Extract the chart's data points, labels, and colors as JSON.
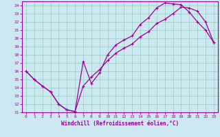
{
  "xlabel": "Windchill (Refroidissement éolien,°C)",
  "bg_color": "#cce8f0",
  "line_color": "#990099",
  "grid_color": "#99ccbb",
  "xlim": [
    -0.5,
    23.5
  ],
  "ylim": [
    11,
    24.5
  ],
  "xticks": [
    0,
    1,
    2,
    3,
    4,
    5,
    6,
    7,
    8,
    9,
    10,
    11,
    12,
    13,
    14,
    15,
    16,
    17,
    18,
    19,
    20,
    21,
    22,
    23
  ],
  "yticks": [
    11,
    12,
    13,
    14,
    15,
    16,
    17,
    18,
    19,
    20,
    21,
    22,
    23,
    24
  ],
  "line1_x": [
    0,
    1,
    2,
    3,
    4,
    5,
    6,
    7,
    8,
    9,
    10,
    11,
    12,
    13,
    14,
    15,
    16,
    17,
    18,
    19,
    20,
    21,
    22,
    23
  ],
  "line1_y": [
    16,
    15,
    14.2,
    13.5,
    12,
    11.3,
    11.1,
    17.2,
    14.5,
    15.8,
    18.0,
    19.2,
    19.8,
    20.3,
    21.7,
    22.5,
    23.7,
    24.3,
    24.2,
    24.1,
    23.2,
    22.0,
    21.0,
    19.5
  ],
  "line2_x": [
    0,
    1,
    2,
    3,
    4,
    5,
    6,
    7,
    8,
    9,
    10,
    11,
    12,
    13,
    14,
    15,
    16,
    17,
    18,
    19,
    20,
    21,
    22,
    23
  ],
  "line2_y": [
    16,
    15,
    14.2,
    13.5,
    12,
    11.3,
    11.1,
    14.2,
    15.3,
    16.2,
    17.3,
    18.2,
    18.8,
    19.3,
    20.2,
    20.8,
    21.8,
    22.3,
    23.0,
    23.8,
    23.7,
    23.3,
    22.0,
    19.5
  ]
}
